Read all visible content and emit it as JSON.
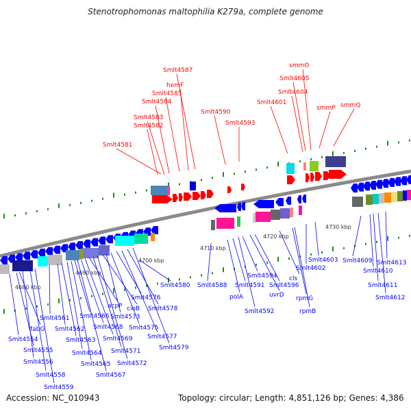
{
  "title": "Stenotrophomonas maltophilia K279a, complete genome",
  "footer": {
    "accession": "Accession: NC_010943",
    "summary": "Topology: circular; Length: 4,851,126 bp; Genes: 4,386"
  },
  "colors": {
    "forward_label": "#ff0000",
    "reverse_label": "#0000ff",
    "backbone": "#8a8a8a",
    "tick": "#1a8a1a",
    "forward_gene": "#ff0000",
    "reverse_gene": "#0000ff"
  },
  "kbp_ticks": [
    "4680 kbp",
    "4690 kbp",
    "4700 kbp",
    "4710 kbp",
    "4720 kbp",
    "4730 kbp"
  ],
  "forward_labels": [
    "Smlt4581",
    "Smlt4582",
    "Smlt4583",
    "Smlt4584",
    "Smlt4585",
    "hemF",
    "Smlt4587",
    "Smlt4590",
    "Smlt4593",
    "Smlt4601",
    "Smlt4604",
    "Smlt4605",
    "smmO",
    "smmP",
    "smmQ"
  ],
  "reverse_labels": [
    "Smlt4554",
    "Smlt4555",
    "fabG",
    "Smlt4556",
    "Smlt4558",
    "Smlt4559",
    "Smlt4561",
    "Smlt4562",
    "Smlt4563",
    "Smlt4564",
    "Smlt4565",
    "Smlt4566",
    "Smlt4567",
    "Smlt4568",
    "Smlt4569",
    "acpP",
    "Smlt4571",
    "Smlt4572",
    "cioB",
    "Smlt4573",
    "Smlt4575",
    "Smlt4576",
    "Smlt4577",
    "Smlt4578",
    "Smlt4579",
    "Smlt4580",
    "Smlt4588",
    "polA",
    "Smlt4591",
    "Smlt4592",
    "Smlt4594",
    "uvrD",
    "Smlt4596",
    "cls",
    "rpmG",
    "rpmB",
    "Smlt4602",
    "Smlt4603",
    "Smlt4609",
    "Smlt4610",
    "Smlt4611",
    "Smlt4612",
    "Smlt4613"
  ]
}
